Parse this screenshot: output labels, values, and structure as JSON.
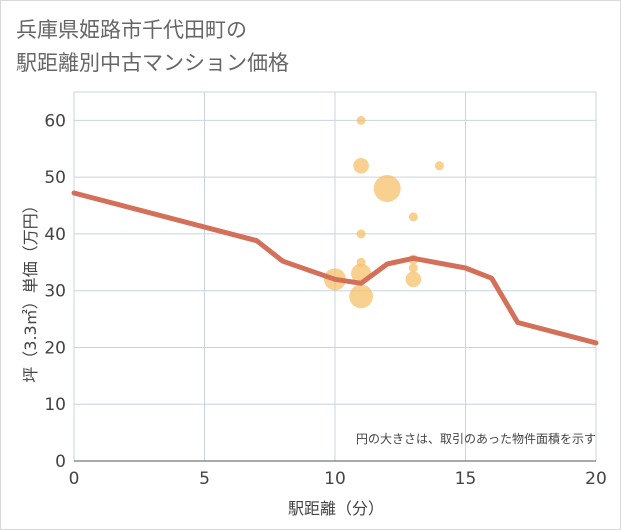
{
  "title_line1": "兵庫県姫路市千代田町の",
  "title_line2": "駅距離別中古マンション価格",
  "chart_data": {
    "type": "scatter",
    "title": "兵庫県姫路市千代田町の駅距離別中古マンション価格",
    "xlabel": "駅距離（分）",
    "ylabel": "坪（3.3㎡）単価（万円）",
    "xlim": [
      0,
      20
    ],
    "ylim": [
      0,
      65
    ],
    "xticks": [
      0,
      5,
      10,
      15,
      20
    ],
    "yticks": [
      0,
      10,
      20,
      30,
      40,
      50,
      60
    ],
    "grid": true,
    "note": "円の大きさは、取引のあった物件面積を示す",
    "bubble_color": "#f5c06a",
    "line_color": "#d4705a",
    "points": [
      {
        "x": 11,
        "y": 60,
        "size": 1
      },
      {
        "x": 11,
        "y": 52,
        "size": 3
      },
      {
        "x": 14,
        "y": 52,
        "size": 1
      },
      {
        "x": 12,
        "y": 48,
        "size": 9
      },
      {
        "x": 13,
        "y": 43,
        "size": 1
      },
      {
        "x": 11,
        "y": 40,
        "size": 1
      },
      {
        "x": 13,
        "y": 35.5,
        "size": 1.2
      },
      {
        "x": 11,
        "y": 35,
        "size": 1
      },
      {
        "x": 13,
        "y": 34,
        "size": 1
      },
      {
        "x": 11,
        "y": 33,
        "size": 5
      },
      {
        "x": 10,
        "y": 32,
        "size": 6
      },
      {
        "x": 13,
        "y": 32,
        "size": 3
      },
      {
        "x": 11,
        "y": 29,
        "size": 7
      }
    ],
    "trend": {
      "x": [
        0,
        7,
        8,
        10,
        11,
        12,
        13,
        15,
        16,
        17,
        20
      ],
      "y": [
        47.2,
        38.8,
        35.2,
        32,
        31.3,
        34.7,
        35.7,
        34,
        32.2,
        24.4,
        20.8
      ]
    }
  }
}
